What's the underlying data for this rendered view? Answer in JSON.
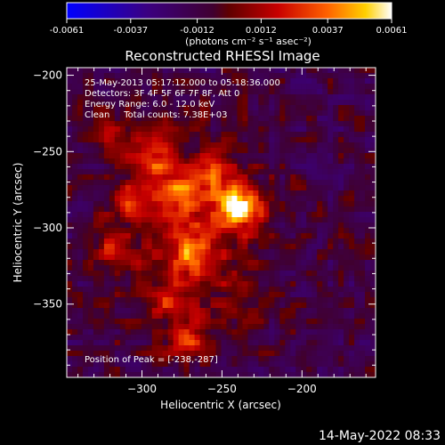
{
  "chart_data": {
    "type": "heatmap",
    "title": "Reconstructed RHESSI Image",
    "xlabel": "Heliocentric X (arcsec)",
    "ylabel": "Heliocentric Y (arcsec)",
    "xlim": [
      -347,
      -154
    ],
    "ylim": [
      -398,
      -195
    ],
    "x_ticks": [
      -300,
      -250,
      -200
    ],
    "y_ticks": [
      -200,
      -250,
      -300,
      -350
    ],
    "colorbar": {
      "ticks": [
        "-0.0061",
        "-0.0037",
        "-0.0012",
        "0.0012",
        "0.0037",
        "0.0061"
      ],
      "range": [
        -0.0061,
        0.0061
      ],
      "unit_label": "(photons cm⁻² s⁻¹ asec⁻²)"
    },
    "annotations": [
      "25-May-2013 05:17:12.000 to 05:18:36.000",
      "Detectors: 3F 4F 5F 6F 7F 8F, Att 0",
      "Energy Range: 6.0 - 12.0 keV",
      "Clean     Total counts: 7.38E+03"
    ],
    "peak_label": "Position of Peak = [-238,-287]",
    "peak": {
      "x": -238,
      "y": -287,
      "value": 0.0061
    },
    "sources": [
      {
        "x": -238,
        "y": -287,
        "amp": 0.0061,
        "sigma": 9
      },
      {
        "x": -268,
        "y": -318,
        "amp": 0.0034,
        "sigma": 9
      },
      {
        "x": -272,
        "y": -375,
        "amp": 0.0036,
        "sigma": 8
      },
      {
        "x": -308,
        "y": -282,
        "amp": 0.003,
        "sigma": 8
      },
      {
        "x": -293,
        "y": -257,
        "amp": 0.0024,
        "sigma": 10
      },
      {
        "x": -275,
        "y": -278,
        "amp": 0.0027,
        "sigma": 12
      },
      {
        "x": -318,
        "y": -315,
        "amp": 0.0024,
        "sigma": 8
      },
      {
        "x": -283,
        "y": -348,
        "amp": 0.0022,
        "sigma": 8
      },
      {
        "x": -253,
        "y": -265,
        "amp": 0.0022,
        "sigma": 9
      },
      {
        "x": -313,
        "y": -240,
        "amp": 0.0016,
        "sigma": 10
      }
    ],
    "background": -0.0012
  },
  "footer": {
    "timestamp": "14-May-2022 08:33"
  }
}
